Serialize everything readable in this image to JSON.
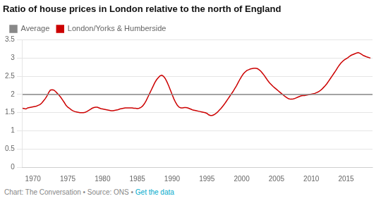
{
  "chart_data": {
    "type": "line",
    "title": "Ratio of house prices in London relative to the north of England",
    "x": [
      1968.5,
      1969.0,
      1969.25,
      1969.5,
      1969.75,
      1970.0,
      1970.25,
      1970.5,
      1970.75,
      1971.0,
      1971.25,
      1971.5,
      1971.75,
      1972.0,
      1972.25,
      1972.5,
      1972.75,
      1973.0,
      1973.25,
      1973.5,
      1973.75,
      1974.0,
      1974.25,
      1974.5,
      1974.75,
      1975.0,
      1975.25,
      1975.5,
      1975.75,
      1976.0,
      1976.25,
      1976.5,
      1976.75,
      1977.0,
      1977.25,
      1977.5,
      1977.75,
      1978.0,
      1978.25,
      1978.5,
      1978.75,
      1979.0,
      1979.25,
      1979.5,
      1979.75,
      1980.0,
      1980.25,
      1980.5,
      1980.75,
      1981.0,
      1981.25,
      1981.5,
      1981.75,
      1982.0,
      1982.25,
      1982.5,
      1982.75,
      1983.0,
      1983.25,
      1983.5,
      1983.75,
      1984.0,
      1984.25,
      1984.5,
      1984.75,
      1985.0,
      1985.25,
      1985.5,
      1985.75,
      1986.0,
      1986.25,
      1986.5,
      1986.75,
      1987.0,
      1987.25,
      1987.5,
      1987.75,
      1988.0,
      1988.25,
      1988.5,
      1988.75,
      1989.0,
      1989.25,
      1989.5,
      1989.75,
      1990.0,
      1990.25,
      1990.5,
      1990.75,
      1991.0,
      1991.25,
      1991.5,
      1991.75,
      1992.0,
      1992.25,
      1992.5,
      1992.75,
      1993.0,
      1993.25,
      1993.5,
      1993.75,
      1994.0,
      1994.25,
      1994.5,
      1994.75,
      1995.0,
      1995.25,
      1995.5,
      1995.75,
      1996.0,
      1996.25,
      1996.5,
      1996.75,
      1997.0,
      1997.25,
      1997.5,
      1997.75,
      1998.0,
      1998.25,
      1998.5,
      1998.75,
      1999.0,
      1999.25,
      1999.5,
      1999.75,
      2000.0,
      2000.25,
      2000.5,
      2000.75,
      2001.0,
      2001.25,
      2001.5,
      2001.75,
      2002.0,
      2002.25,
      2002.5,
      2002.75,
      2003.0,
      2003.25,
      2003.5,
      2003.75,
      2004.0,
      2004.25,
      2004.5,
      2004.75,
      2005.0,
      2005.25,
      2005.5,
      2005.75,
      2006.0,
      2006.25,
      2006.5,
      2006.75,
      2007.0,
      2007.25,
      2007.5,
      2007.75,
      2008.0,
      2008.25,
      2008.5,
      2008.75,
      2009.0,
      2009.25,
      2009.5,
      2009.75,
      2010.0,
      2010.25,
      2010.5,
      2010.75,
      2011.0,
      2011.25,
      2011.5,
      2011.75,
      2012.0,
      2012.25,
      2012.5,
      2012.75,
      2013.0,
      2013.25,
      2013.5,
      2013.75,
      2014.0,
      2014.25,
      2014.5,
      2014.75,
      2015.0,
      2015.25,
      2015.5,
      2015.75,
      2016.0,
      2016.25,
      2016.5,
      2016.75,
      2017.0,
      2017.25,
      2017.5,
      2017.75,
      2018.0,
      2018.5
    ],
    "series": [
      {
        "name": "London/Yorks & Humberside",
        "color": "#cc0000",
        "values": [
          1.62,
          1.6,
          1.63,
          1.64,
          1.65,
          1.66,
          1.67,
          1.68,
          1.7,
          1.72,
          1.76,
          1.82,
          1.88,
          1.95,
          2.05,
          2.12,
          2.13,
          2.12,
          2.08,
          2.03,
          1.98,
          1.92,
          1.85,
          1.78,
          1.7,
          1.65,
          1.62,
          1.58,
          1.55,
          1.53,
          1.52,
          1.51,
          1.5,
          1.5,
          1.5,
          1.51,
          1.53,
          1.56,
          1.59,
          1.62,
          1.64,
          1.65,
          1.65,
          1.63,
          1.61,
          1.6,
          1.59,
          1.58,
          1.57,
          1.56,
          1.55,
          1.55,
          1.56,
          1.57,
          1.58,
          1.6,
          1.61,
          1.62,
          1.63,
          1.63,
          1.63,
          1.63,
          1.63,
          1.62,
          1.62,
          1.61,
          1.62,
          1.64,
          1.68,
          1.74,
          1.82,
          1.92,
          2.02,
          2.12,
          2.22,
          2.32,
          2.4,
          2.46,
          2.51,
          2.53,
          2.5,
          2.44,
          2.35,
          2.24,
          2.12,
          2.0,
          1.88,
          1.78,
          1.7,
          1.65,
          1.63,
          1.63,
          1.64,
          1.64,
          1.63,
          1.61,
          1.59,
          1.57,
          1.56,
          1.55,
          1.54,
          1.53,
          1.52,
          1.51,
          1.5,
          1.48,
          1.44,
          1.42,
          1.42,
          1.44,
          1.47,
          1.51,
          1.56,
          1.61,
          1.67,
          1.73,
          1.8,
          1.87,
          1.94,
          2.01,
          2.08,
          2.16,
          2.24,
          2.33,
          2.42,
          2.5,
          2.57,
          2.62,
          2.66,
          2.68,
          2.7,
          2.71,
          2.72,
          2.72,
          2.71,
          2.68,
          2.64,
          2.58,
          2.52,
          2.45,
          2.38,
          2.32,
          2.27,
          2.22,
          2.18,
          2.14,
          2.1,
          2.06,
          2.02,
          1.98,
          1.94,
          1.91,
          1.88,
          1.87,
          1.87,
          1.88,
          1.9,
          1.92,
          1.94,
          1.96,
          1.97,
          1.97,
          1.98,
          1.99,
          2.0,
          2.01,
          2.02,
          2.03,
          2.05,
          2.07,
          2.1,
          2.14,
          2.19,
          2.24,
          2.3,
          2.37,
          2.44,
          2.51,
          2.58,
          2.65,
          2.73,
          2.8,
          2.86,
          2.91,
          2.95,
          2.98,
          3.01,
          3.05,
          3.08,
          3.1,
          3.12,
          3.14,
          3.15,
          3.13,
          3.1,
          3.07,
          3.05,
          3.03,
          3.0
        ]
      }
    ],
    "reference_line": {
      "name": "Average",
      "color": "#888888",
      "value": 2.0
    },
    "xlim": [
      1968.5,
      2018.8
    ],
    "ylim": [
      0,
      3.5
    ],
    "xticks": [
      1970,
      1975,
      1980,
      1985,
      1990,
      1995,
      2000,
      2005,
      2010,
      2015
    ],
    "yticks": [
      0,
      0.5,
      1,
      1.5,
      2,
      2.5,
      3,
      3.5
    ],
    "grid": "y",
    "legend": "upper left",
    "footer": [
      {
        "text": "Chart: The Conversation • Source: ONS • ",
        "color": "#888888"
      },
      {
        "text": "Get the data",
        "color": "#00aacc"
      }
    ]
  }
}
